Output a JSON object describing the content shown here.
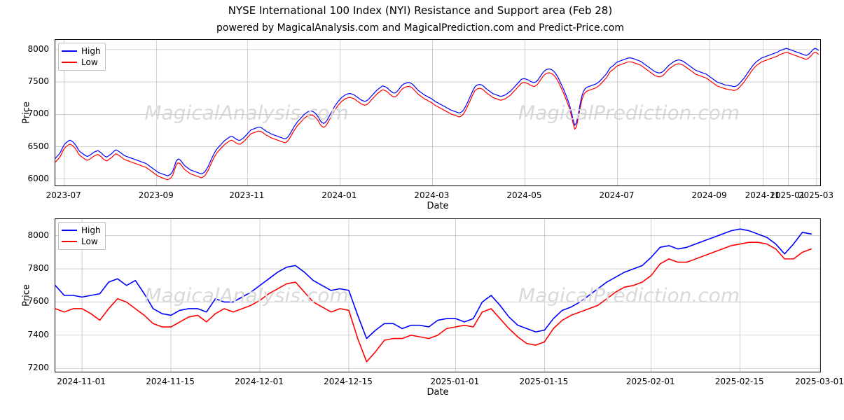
{
  "title": "NYSE International 100 Index (NYI) Resistance and Support area (Feb 28)",
  "subtitle": "powered by MagicalAnalysis.com and MagicalPrediction.com and Predict-Price.com",
  "legend": {
    "high": "High",
    "low": "Low"
  },
  "colors": {
    "high_line": "#0000ff",
    "low_line": "#ff0000",
    "axis": "#000000",
    "grid": "#b0b0b0",
    "background": "#ffffff",
    "watermark": "#d9d9d9",
    "legend_border": "#bfbfbf"
  },
  "watermarks": [
    "MagicalAnalysis.com",
    "MagicalPrediction.com"
  ],
  "top_chart": {
    "type": "line",
    "xlabel": "Date",
    "ylabel": "Price",
    "line_width": 1.2,
    "ylim": [
      5900,
      8150
    ],
    "yticks": [
      6000,
      6500,
      7000,
      7500,
      8000
    ],
    "xlim": [
      0,
      430
    ],
    "xticks": [
      {
        "pos": 5,
        "label": "2023-07"
      },
      {
        "pos": 57,
        "label": "2023-09"
      },
      {
        "pos": 108,
        "label": "2023-11"
      },
      {
        "pos": 160,
        "label": "2024-01"
      },
      {
        "pos": 212,
        "label": "2024-03"
      },
      {
        "pos": 264,
        "label": "2024-05"
      },
      {
        "pos": 316,
        "label": "2024-07"
      },
      {
        "pos": 368,
        "label": "2024-09"
      },
      {
        "pos": 398,
        "label": "2024-11"
      },
      {
        "pos": 412,
        "label": "2025-01"
      },
      {
        "pos": 428,
        "label": "2025-03"
      }
    ],
    "high": [
      6320,
      6350,
      6380,
      6420,
      6480,
      6530,
      6560,
      6580,
      6600,
      6590,
      6570,
      6540,
      6500,
      6450,
      6420,
      6400,
      6380,
      6360,
      6350,
      6360,
      6380,
      6400,
      6420,
      6430,
      6440,
      6420,
      6400,
      6370,
      6350,
      6340,
      6360,
      6380,
      6400,
      6430,
      6450,
      6440,
      6420,
      6400,
      6380,
      6360,
      6350,
      6340,
      6330,
      6320,
      6310,
      6300,
      6290,
      6280,
      6270,
      6260,
      6250,
      6240,
      6220,
      6200,
      6180,
      6160,
      6140,
      6120,
      6100,
      6090,
      6080,
      6070,
      6060,
      6050,
      6060,
      6080,
      6120,
      6200,
      6280,
      6310,
      6300,
      6270,
      6230,
      6200,
      6180,
      6160,
      6140,
      6130,
      6120,
      6110,
      6100,
      6090,
      6080,
      6090,
      6110,
      6150,
      6200,
      6260,
      6320,
      6380,
      6430,
      6470,
      6500,
      6530,
      6560,
      6590,
      6610,
      6630,
      6650,
      6660,
      6650,
      6630,
      6610,
      6600,
      6600,
      6620,
      6640,
      6670,
      6700,
      6730,
      6760,
      6770,
      6780,
      6790,
      6800,
      6800,
      6790,
      6770,
      6750,
      6730,
      6720,
      6700,
      6690,
      6680,
      6670,
      6660,
      6650,
      6640,
      6630,
      6620,
      6630,
      6660,
      6700,
      6750,
      6800,
      6840,
      6880,
      6910,
      6940,
      6970,
      7000,
      7020,
      7040,
      7050,
      7050,
      7040,
      7020,
      6990,
      6950,
      6900,
      6870,
      6860,
      6880,
      6920,
      6970,
      7020,
      7070,
      7120,
      7160,
      7200,
      7230,
      7260,
      7280,
      7300,
      7310,
      7320,
      7320,
      7310,
      7300,
      7280,
      7260,
      7240,
      7220,
      7210,
      7200,
      7210,
      7230,
      7260,
      7290,
      7320,
      7350,
      7380,
      7400,
      7420,
      7440,
      7430,
      7420,
      7400,
      7370,
      7350,
      7330,
      7330,
      7350,
      7380,
      7420,
      7450,
      7470,
      7480,
      7490,
      7490,
      7480,
      7460,
      7430,
      7400,
      7370,
      7350,
      7330,
      7310,
      7290,
      7280,
      7260,
      7250,
      7230,
      7210,
      7190,
      7180,
      7160,
      7150,
      7130,
      7120,
      7100,
      7090,
      7070,
      7060,
      7050,
      7040,
      7030,
      7020,
      7030,
      7050,
      7090,
      7140,
      7200,
      7260,
      7320,
      7380,
      7430,
      7450,
      7460,
      7460,
      7450,
      7430,
      7400,
      7380,
      7360,
      7340,
      7320,
      7310,
      7300,
      7290,
      7280,
      7280,
      7290,
      7300,
      7320,
      7340,
      7360,
      7390,
      7420,
      7450,
      7480,
      7510,
      7540,
      7550,
      7550,
      7540,
      7530,
      7510,
      7500,
      7490,
      7500,
      7520,
      7560,
      7600,
      7640,
      7670,
      7690,
      7700,
      7700,
      7690,
      7670,
      7640,
      7600,
      7550,
      7490,
      7430,
      7370,
      7300,
      7230,
      7150,
      7050,
      6930,
      6830,
      6870,
      7000,
      7150,
      7280,
      7360,
      7400,
      7420,
      7430,
      7440,
      7450,
      7460,
      7470,
      7490,
      7510,
      7540,
      7570,
      7600,
      7630,
      7680,
      7720,
      7740,
      7760,
      7790,
      7810,
      7820,
      7830,
      7840,
      7850,
      7860,
      7870,
      7870,
      7870,
      7860,
      7850,
      7840,
      7830,
      7820,
      7800,
      7780,
      7760,
      7740,
      7720,
      7700,
      7680,
      7660,
      7650,
      7640,
      7640,
      7650,
      7670,
      7700,
      7730,
      7760,
      7780,
      7800,
      7820,
      7830,
      7840,
      7840,
      7830,
      7820,
      7800,
      7780,
      7760,
      7740,
      7720,
      7700,
      7680,
      7670,
      7660,
      7650,
      7640,
      7630,
      7620,
      7600,
      7580,
      7560,
      7540,
      7520,
      7500,
      7490,
      7480,
      7470,
      7460,
      7450,
      7450,
      7440,
      7440,
      7430,
      7430,
      7440,
      7460,
      7490,
      7520,
      7550,
      7590,
      7630,
      7670,
      7710,
      7750,
      7780,
      7810,
      7830,
      7850,
      7870,
      7880,
      7890,
      7900,
      7910,
      7920,
      7930,
      7940,
      7950,
      7960,
      7980,
      7990,
      8000,
      8010,
      8020,
      8010,
      8000,
      7990,
      7980,
      7970,
      7960,
      7950,
      7940,
      7930,
      7920,
      7910,
      7920,
      7940,
      7970,
      8000,
      8020,
      8010,
      7990
    ],
    "low": [
      6260,
      6290,
      6320,
      6360,
      6420,
      6470,
      6500,
      6520,
      6540,
      6530,
      6510,
      6480,
      6440,
      6390,
      6360,
      6340,
      6320,
      6300,
      6290,
      6300,
      6320,
      6340,
      6360,
      6370,
      6380,
      6360,
      6340,
      6310,
      6290,
      6280,
      6300,
      6320,
      6340,
      6370,
      6390,
      6380,
      6360,
      6340,
      6320,
      6300,
      6290,
      6280,
      6270,
      6260,
      6250,
      6240,
      6230,
      6220,
      6210,
      6200,
      6190,
      6180,
      6160,
      6140,
      6120,
      6100,
      6080,
      6060,
      6040,
      6030,
      6020,
      6010,
      6000,
      5990,
      6000,
      6020,
      6060,
      6140,
      6220,
      6250,
      6240,
      6210,
      6170,
      6140,
      6120,
      6100,
      6080,
      6070,
      6060,
      6050,
      6040,
      6030,
      6020,
      6030,
      6050,
      6090,
      6140,
      6200,
      6260,
      6320,
      6370,
      6410,
      6440,
      6470,
      6500,
      6530,
      6550,
      6570,
      6590,
      6600,
      6590,
      6570,
      6550,
      6540,
      6540,
      6560,
      6580,
      6610,
      6640,
      6670,
      6700,
      6710,
      6720,
      6730,
      6740,
      6740,
      6730,
      6710,
      6690,
      6670,
      6660,
      6640,
      6630,
      6620,
      6610,
      6600,
      6590,
      6580,
      6570,
      6560,
      6570,
      6600,
      6640,
      6690,
      6740,
      6780,
      6820,
      6850,
      6880,
      6910,
      6940,
      6960,
      6980,
      6990,
      6990,
      6980,
      6960,
      6930,
      6890,
      6840,
      6810,
      6800,
      6820,
      6860,
      6910,
      6960,
      7010,
      7060,
      7100,
      7140,
      7170,
      7200,
      7220,
      7240,
      7250,
      7260,
      7260,
      7250,
      7240,
      7220,
      7200,
      7180,
      7160,
      7150,
      7140,
      7150,
      7170,
      7200,
      7230,
      7260,
      7290,
      7320,
      7340,
      7360,
      7380,
      7370,
      7360,
      7340,
      7310,
      7290,
      7270,
      7270,
      7290,
      7320,
      7360,
      7390,
      7410,
      7420,
      7430,
      7430,
      7420,
      7400,
      7370,
      7340,
      7310,
      7290,
      7270,
      7250,
      7230,
      7220,
      7200,
      7190,
      7170,
      7150,
      7130,
      7120,
      7100,
      7090,
      7070,
      7060,
      7040,
      7030,
      7010,
      7000,
      6990,
      6980,
      6970,
      6960,
      6970,
      6990,
      7030,
      7080,
      7140,
      7200,
      7260,
      7320,
      7370,
      7390,
      7400,
      7400,
      7390,
      7370,
      7340,
      7320,
      7300,
      7280,
      7260,
      7250,
      7240,
      7230,
      7220,
      7220,
      7230,
      7240,
      7260,
      7280,
      7300,
      7330,
      7360,
      7390,
      7420,
      7450,
      7480,
      7490,
      7490,
      7480,
      7470,
      7450,
      7440,
      7430,
      7440,
      7460,
      7500,
      7540,
      7580,
      7610,
      7630,
      7640,
      7640,
      7630,
      7610,
      7580,
      7540,
      7490,
      7430,
      7370,
      7310,
      7240,
      7170,
      7090,
      6990,
      6870,
      6770,
      6810,
      6940,
      7090,
      7220,
      7300,
      7340,
      7360,
      7370,
      7380,
      7390,
      7400,
      7410,
      7430,
      7450,
      7480,
      7510,
      7540,
      7570,
      7620,
      7660,
      7680,
      7700,
      7730,
      7750,
      7760,
      7770,
      7780,
      7790,
      7800,
      7810,
      7810,
      7810,
      7800,
      7790,
      7780,
      7770,
      7760,
      7740,
      7720,
      7700,
      7680,
      7660,
      7640,
      7620,
      7600,
      7590,
      7580,
      7580,
      7590,
      7610,
      7640,
      7670,
      7700,
      7720,
      7740,
      7760,
      7770,
      7780,
      7780,
      7770,
      7760,
      7740,
      7720,
      7700,
      7680,
      7660,
      7640,
      7620,
      7610,
      7600,
      7590,
      7580,
      7570,
      7560,
      7540,
      7520,
      7500,
      7480,
      7460,
      7440,
      7430,
      7420,
      7410,
      7400,
      7390,
      7390,
      7380,
      7380,
      7370,
      7370,
      7380,
      7400,
      7430,
      7460,
      7490,
      7530,
      7570,
      7610,
      7650,
      7690,
      7720,
      7750,
      7770,
      7790,
      7810,
      7820,
      7830,
      7840,
      7850,
      7860,
      7870,
      7880,
      7890,
      7900,
      7920,
      7930,
      7940,
      7950,
      7960,
      7950,
      7940,
      7930,
      7920,
      7910,
      7900,
      7890,
      7880,
      7870,
      7860,
      7850,
      7860,
      7880,
      7910,
      7940,
      7960,
      7950,
      7930
    ]
  },
  "bottom_chart": {
    "type": "line",
    "xlabel": "Date",
    "ylabel": "Price",
    "line_width": 1.6,
    "ylim": [
      7180,
      8100
    ],
    "yticks": [
      7200,
      7400,
      7600,
      7800,
      8000
    ],
    "xlim": [
      0,
      86
    ],
    "xticks": [
      {
        "pos": 3,
        "label": "2024-11-01"
      },
      {
        "pos": 13,
        "label": "2024-11-15"
      },
      {
        "pos": 23,
        "label": "2024-12-01"
      },
      {
        "pos": 33,
        "label": "2024-12-15"
      },
      {
        "pos": 45,
        "label": "2025-01-01"
      },
      {
        "pos": 55,
        "label": "2025-01-15"
      },
      {
        "pos": 67,
        "label": "2025-02-01"
      },
      {
        "pos": 77,
        "label": "2025-02-15"
      },
      {
        "pos": 86,
        "label": "2025-03-01"
      }
    ],
    "high": [
      7700,
      7640,
      7640,
      7630,
      7640,
      7650,
      7720,
      7740,
      7700,
      7730,
      7650,
      7560,
      7530,
      7520,
      7550,
      7560,
      7560,
      7540,
      7620,
      7600,
      7600,
      7630,
      7660,
      7700,
      7740,
      7780,
      7810,
      7820,
      7780,
      7730,
      7700,
      7670,
      7680,
      7670,
      7520,
      7380,
      7430,
      7470,
      7470,
      7440,
      7460,
      7460,
      7450,
      7490,
      7500,
      7500,
      7480,
      7500,
      7600,
      7640,
      7580,
      7510,
      7460,
      7440,
      7420,
      7430,
      7500,
      7550,
      7570,
      7600,
      7640,
      7680,
      7720,
      7750,
      7780,
      7800,
      7820,
      7870,
      7930,
      7940,
      7920,
      7930,
      7950,
      7970,
      7990,
      8010,
      8030,
      8040,
      8030,
      8010,
      7990,
      7950,
      7890,
      7950,
      8020,
      8010
    ],
    "low": [
      7560,
      7540,
      7560,
      7560,
      7530,
      7490,
      7560,
      7620,
      7600,
      7560,
      7520,
      7470,
      7450,
      7450,
      7480,
      7510,
      7520,
      7480,
      7530,
      7560,
      7540,
      7560,
      7580,
      7610,
      7650,
      7680,
      7710,
      7720,
      7660,
      7600,
      7570,
      7540,
      7560,
      7550,
      7380,
      7240,
      7300,
      7370,
      7380,
      7380,
      7400,
      7390,
      7380,
      7400,
      7440,
      7450,
      7460,
      7450,
      7540,
      7560,
      7500,
      7440,
      7390,
      7350,
      7340,
      7360,
      7440,
      7490,
      7520,
      7540,
      7560,
      7580,
      7620,
      7660,
      7690,
      7700,
      7720,
      7760,
      7830,
      7860,
      7840,
      7840,
      7860,
      7880,
      7900,
      7920,
      7940,
      7950,
      7960,
      7960,
      7950,
      7920,
      7860,
      7860,
      7900,
      7920
    ]
  }
}
